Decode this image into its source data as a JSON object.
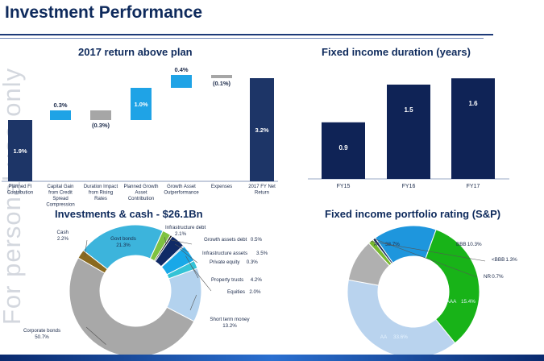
{
  "page": {
    "title": "Investment Performance",
    "watermark": "For personal use only"
  },
  "chart_data": [
    {
      "type": "bar",
      "subtype": "waterfall",
      "title": "2017 return above plan",
      "categories": [
        "Planned FI Contribution",
        "Capital Gain from Credit Spread Compression",
        "Duration Impact from Rising Rates",
        "Planned Growth Asset Contribution",
        "Growth Asset Outperformance",
        "Expenses",
        "2017 FY Net Return"
      ],
      "values": [
        1.9,
        0.3,
        -0.3,
        1.0,
        0.4,
        -0.1,
        3.2
      ],
      "labels": [
        "1.9%",
        "0.3%",
        "(0.3%)",
        "1.0%",
        "0.4%",
        "(0.1%)",
        "3.2%"
      ],
      "colors": [
        "#1d3567",
        "#1fa3e6",
        "#a6a6a6",
        "#1fa3e6",
        "#1fa3e6",
        "#a6a6a6",
        "#1d3567"
      ]
    },
    {
      "type": "bar",
      "title": "Fixed income duration (years)",
      "categories": [
        "FY15",
        "FY16",
        "FY17"
      ],
      "values": [
        0.9,
        1.5,
        1.6
      ],
      "labels": [
        "0.9",
        "1.5",
        "1.6"
      ],
      "color": "#0f2356"
    },
    {
      "type": "pie",
      "subtype": "donut",
      "title": "Investments & cash - $26.1Bn",
      "slices": [
        {
          "name": "Cash",
          "value": 2.2,
          "value_label": "2.2%",
          "color": "#8a6a1f"
        },
        {
          "name": "Govt bonds",
          "value": 21.3,
          "value_label": "21.3%",
          "color": "#3cb4dc"
        },
        {
          "name": "Infrastructure debt",
          "value": 2.1,
          "value_label": "2.1%",
          "color": "#7fc241"
        },
        {
          "name": "Growth assets debt",
          "value": 0.5,
          "value_label": "0.5%",
          "color": "#1a1a1a"
        },
        {
          "name": "Infrastructure assets",
          "value": 3.5,
          "value_label": "3.5%",
          "color": "#102a66"
        },
        {
          "name": "Private equity",
          "value": 0.3,
          "value_label": "0.3%",
          "color": "#1e5fb5"
        },
        {
          "name": "Property trusts",
          "value": 4.2,
          "value_label": "4.2%",
          "color": "#18a8e8"
        },
        {
          "name": "Equities",
          "value": 2.0,
          "value_label": "2.0%",
          "color": "#34c3d6"
        },
        {
          "name": "Short term money",
          "value": 13.2,
          "value_label": "13.2%",
          "color": "#b3d2ee"
        },
        {
          "name": "Corporate bonds",
          "value": 50.7,
          "value_label": "50.7%",
          "color": "#a8a8a8"
        }
      ]
    },
    {
      "type": "pie",
      "subtype": "donut",
      "title": "Fixed income portfolio rating (S&P)",
      "slices": [
        {
          "name": "A",
          "value": 38.7,
          "value_label": "38.7%",
          "color": "#b9d3ee"
        },
        {
          "name": "BBB",
          "value": 10.3,
          "value_label": "10.3%",
          "color": "#b0b0b0"
        },
        {
          "name": "<BBB",
          "value": 1.3,
          "value_label": "1.3%",
          "color": "#77b82e"
        },
        {
          "name": "NR",
          "value": 0.7,
          "value_label": "0.7%",
          "color": "#1a2c5c"
        },
        {
          "name": "AAA",
          "value": 15.4,
          "value_label": "15.4%",
          "color": "#1e96dd"
        },
        {
          "name": "AA",
          "value": 33.6,
          "value_label": "33.6%",
          "color": "#18b318"
        }
      ]
    }
  ]
}
